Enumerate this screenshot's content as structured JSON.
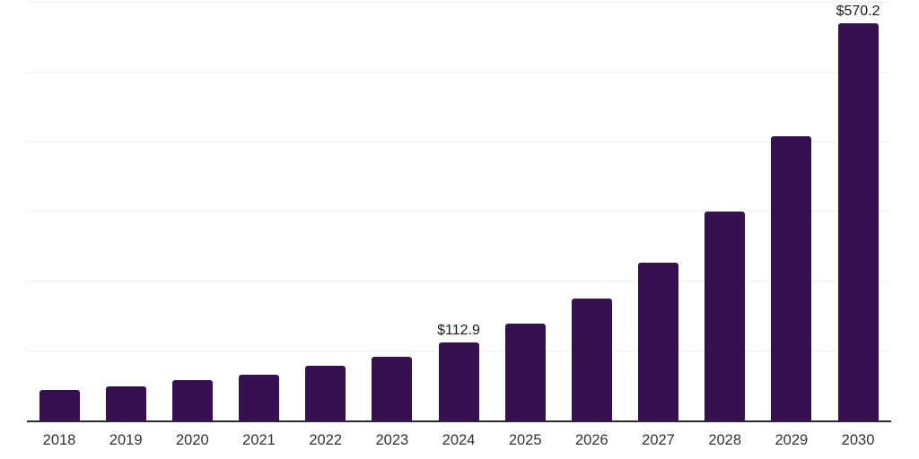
{
  "chart_data": {
    "type": "bar",
    "title": "",
    "xlabel": "",
    "ylabel": "",
    "categories": [
      "2018",
      "2019",
      "2020",
      "2021",
      "2022",
      "2023",
      "2024",
      "2025",
      "2026",
      "2027",
      "2028",
      "2029",
      "2030"
    ],
    "values": [
      45.0,
      50.0,
      59.0,
      67.0,
      79.5,
      92.5,
      112.9,
      140.0,
      176.0,
      227.0,
      300.0,
      408.0,
      570.2
    ],
    "data_labels": [
      "",
      "",
      "",
      "",
      "",
      "",
      "$112.9",
      "",
      "",
      "",
      "",
      "",
      "$570.2"
    ],
    "ylim": [
      0,
      600
    ],
    "gridlines": [
      100,
      200,
      300,
      400,
      500,
      600
    ],
    "grid": "horizontal-only",
    "legend": "none",
    "y_axis_tick_labels": "none",
    "colors": {
      "bar": "#36114F",
      "axis_line": "#2b2b2b",
      "gridline": "#efefef",
      "data_label": "#1a1a1a",
      "tick_label": "#333333",
      "background": "#ffffff"
    }
  }
}
